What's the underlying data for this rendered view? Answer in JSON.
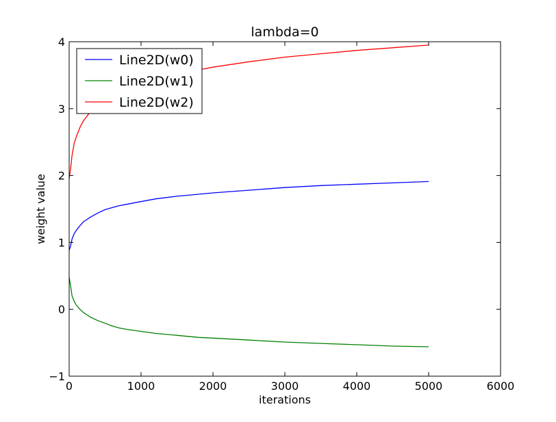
{
  "chart_data": {
    "type": "line",
    "title": "lambda=0",
    "xlabel": "iterations",
    "ylabel": "weight value",
    "xlim": [
      0,
      6000
    ],
    "ylim": [
      -1,
      4
    ],
    "xticks": [
      0,
      1000,
      2000,
      3000,
      4000,
      5000,
      6000
    ],
    "yticks": [
      -1,
      0,
      1,
      2,
      3,
      4
    ],
    "xtick_labels": [
      "0",
      "1000",
      "2000",
      "3000",
      "4000",
      "5000",
      "6000"
    ],
    "ytick_labels": [
      "−1",
      "0",
      "1",
      "2",
      "3",
      "4"
    ],
    "grid": false,
    "legend_position": "top-left",
    "series": [
      {
        "name": "Line2D(w0)",
        "color": "#0000ff",
        "x": [
          0,
          20,
          40,
          70,
          100,
          150,
          200,
          300,
          400,
          500,
          600,
          700,
          800,
          1000,
          1200,
          1500,
          1800,
          2000,
          2500,
          3000,
          3500,
          4000,
          4500,
          5000
        ],
        "y": [
          0.88,
          0.95,
          1.05,
          1.13,
          1.18,
          1.25,
          1.31,
          1.38,
          1.44,
          1.49,
          1.52,
          1.55,
          1.57,
          1.61,
          1.65,
          1.69,
          1.72,
          1.74,
          1.78,
          1.82,
          1.85,
          1.87,
          1.89,
          1.91
        ]
      },
      {
        "name": "Line2D(w1)",
        "color": "#008000",
        "x": [
          0,
          20,
          40,
          70,
          100,
          150,
          200,
          300,
          400,
          500,
          600,
          700,
          800,
          1000,
          1200,
          1500,
          1800,
          2000,
          2500,
          3000,
          3500,
          4000,
          4500,
          5000
        ],
        "y": [
          0.48,
          0.35,
          0.2,
          0.12,
          0.06,
          0.0,
          -0.05,
          -0.12,
          -0.17,
          -0.21,
          -0.25,
          -0.28,
          -0.3,
          -0.33,
          -0.36,
          -0.39,
          -0.42,
          -0.43,
          -0.46,
          -0.49,
          -0.51,
          -0.53,
          -0.55,
          -0.56
        ]
      },
      {
        "name": "Line2D(w2)",
        "color": "#ff0000",
        "x": [
          0,
          20,
          40,
          70,
          100,
          150,
          200,
          300,
          400,
          500,
          600,
          700,
          800,
          1000,
          1200,
          1500,
          1800,
          2000,
          2500,
          3000,
          3500,
          4000,
          4500,
          5000
        ],
        "y": [
          1.95,
          2.1,
          2.3,
          2.48,
          2.58,
          2.72,
          2.82,
          2.96,
          3.07,
          3.15,
          3.22,
          3.27,
          3.31,
          3.38,
          3.45,
          3.53,
          3.58,
          3.62,
          3.7,
          3.77,
          3.82,
          3.87,
          3.91,
          3.95
        ]
      }
    ]
  }
}
